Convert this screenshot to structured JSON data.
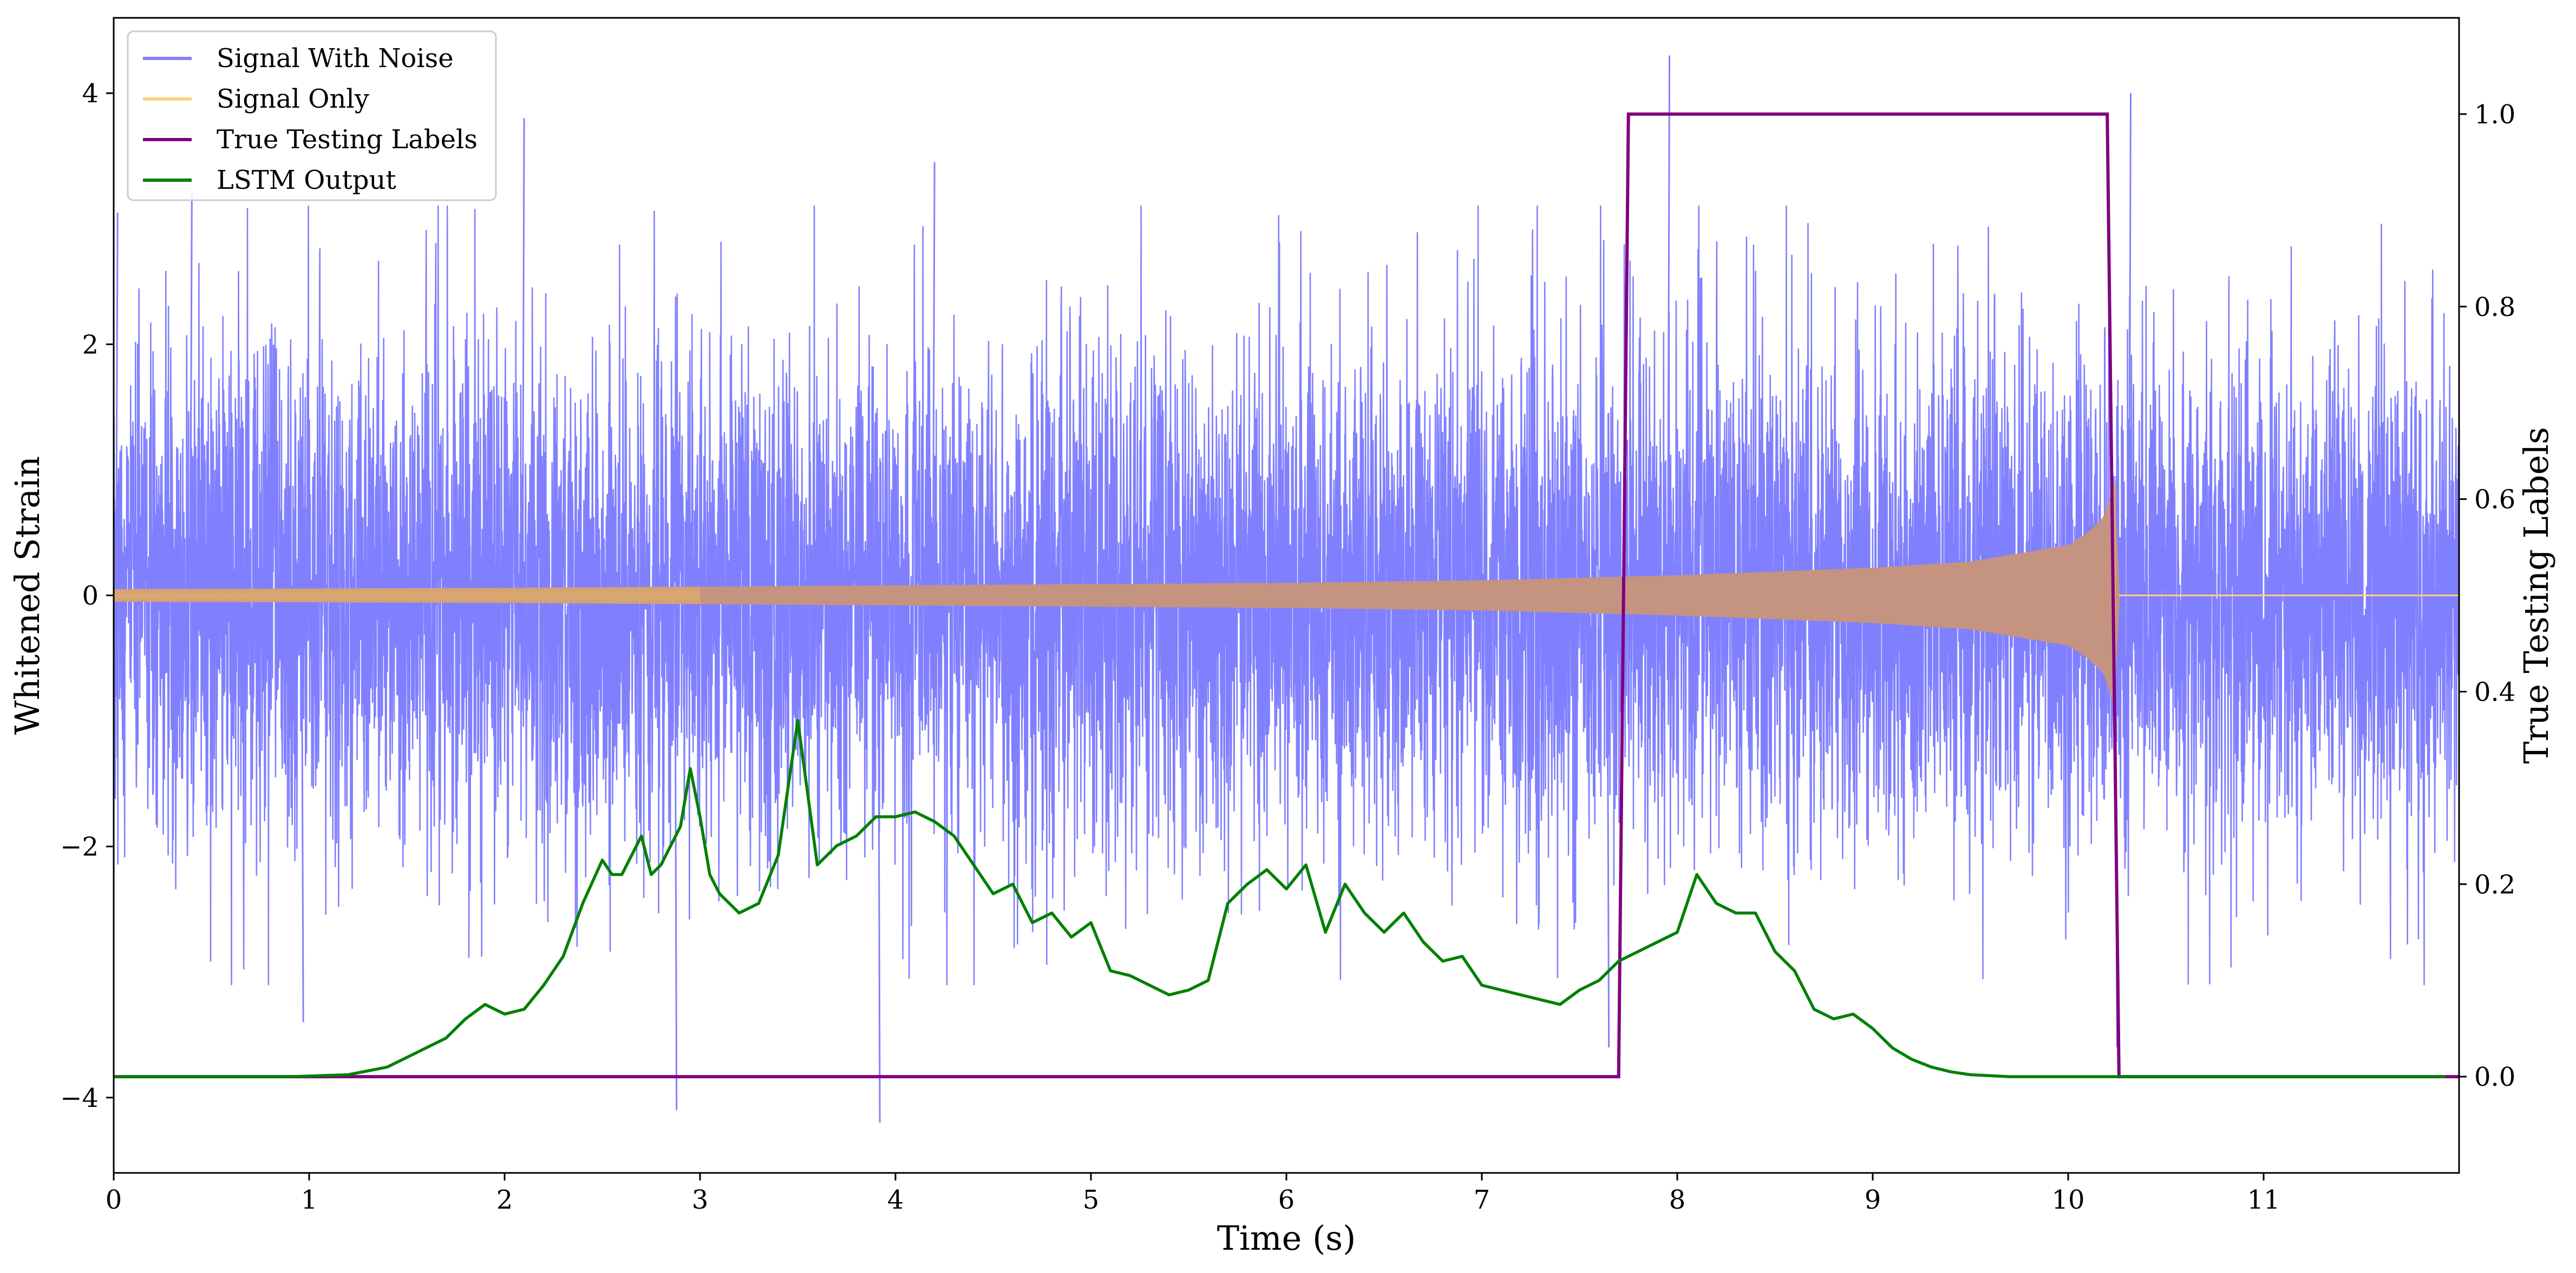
{
  "chart_data": {
    "type": "line",
    "title": "",
    "xlabel": "Time (s)",
    "ylabel": "Whitened Strain",
    "y2label": "True Testing Labels",
    "xlim": [
      0,
      12
    ],
    "ylim": [
      -4.6,
      4.6
    ],
    "y2lim": [
      -0.1,
      1.1
    ],
    "xticks": [
      "0",
      "1",
      "2",
      "3",
      "4",
      "5",
      "6",
      "7",
      "8",
      "9",
      "10",
      "11"
    ],
    "yticks": [
      "−4",
      "−2",
      "0",
      "2",
      "4"
    ],
    "y2ticks": [
      "0.0",
      "0.2",
      "0.4",
      "0.6",
      "0.8",
      "1.0"
    ],
    "grid": false,
    "legend_position": "top-left",
    "series": [
      {
        "name": "Signal With Noise",
        "axis": "left",
        "color": "#8080ff",
        "description_kind": "noise",
        "x_range": [
          0,
          12
        ],
        "typical_amplitude": 1.8,
        "peak_spikes": [
          {
            "x": 0.02,
            "y": 3.05
          },
          {
            "x": 0.4,
            "y": 3.2
          },
          {
            "x": 0.97,
            "y": -3.4
          },
          {
            "x": 2.1,
            "y": 3.8
          },
          {
            "x": 2.88,
            "y": -4.1
          },
          {
            "x": 3.92,
            "y": -4.2
          },
          {
            "x": 4.2,
            "y": 3.45
          },
          {
            "x": 7.65,
            "y": -3.6
          },
          {
            "x": 7.96,
            "y": 4.3
          },
          {
            "x": 10.25,
            "y": -3.6
          },
          {
            "x": 10.32,
            "y": 4.0
          }
        ]
      },
      {
        "name": "Signal Only",
        "axis": "left",
        "color": "#ffd27a",
        "description_kind": "chirp_envelope",
        "envelope": [
          [
            0,
            0.05
          ],
          [
            2,
            0.06
          ],
          [
            4,
            0.08
          ],
          [
            6,
            0.1
          ],
          [
            7,
            0.12
          ],
          [
            8,
            0.16
          ],
          [
            9,
            0.22
          ],
          [
            9.5,
            0.27
          ],
          [
            10,
            0.4
          ],
          [
            10.1,
            0.5
          ],
          [
            10.18,
            0.62
          ],
          [
            10.24,
            0.9
          ],
          [
            10.26,
            0.0
          ],
          [
            12,
            0.0
          ]
        ]
      },
      {
        "name": "True Testing Labels",
        "axis": "right",
        "color": "#800080",
        "x": [
          0,
          7.7,
          7.75,
          10.2,
          10.26,
          10.26
        ],
        "values": [
          0.0,
          0.0,
          1.0,
          1.0,
          0.0,
          0.0
        ]
      },
      {
        "name": "LSTM Output",
        "axis": "right",
        "color": "#008000",
        "x": [
          0,
          0.9,
          1.2,
          1.4,
          1.6,
          1.7,
          1.8,
          1.9,
          2.0,
          2.1,
          2.2,
          2.3,
          2.4,
          2.5,
          2.55,
          2.6,
          2.7,
          2.75,
          2.8,
          2.9,
          2.95,
          3.0,
          3.05,
          3.1,
          3.2,
          3.3,
          3.4,
          3.5,
          3.6,
          3.7,
          3.8,
          3.9,
          4.0,
          4.1,
          4.2,
          4.3,
          4.4,
          4.5,
          4.6,
          4.7,
          4.8,
          4.9,
          5.0,
          5.1,
          5.2,
          5.3,
          5.4,
          5.5,
          5.6,
          5.7,
          5.8,
          5.9,
          6.0,
          6.1,
          6.2,
          6.3,
          6.4,
          6.5,
          6.6,
          6.7,
          6.8,
          6.9,
          7.0,
          7.1,
          7.2,
          7.3,
          7.4,
          7.5,
          7.6,
          7.7,
          7.8,
          7.9,
          8.0,
          8.1,
          8.2,
          8.3,
          8.4,
          8.5,
          8.6,
          8.7,
          8.8,
          8.9,
          9.0,
          9.1,
          9.2,
          9.3,
          9.4,
          9.5,
          9.6,
          9.7,
          9.8,
          10.0,
          10.3,
          12
        ],
        "values": [
          0.0,
          0.0,
          0.002,
          0.01,
          0.03,
          0.04,
          0.06,
          0.075,
          0.065,
          0.07,
          0.095,
          0.125,
          0.18,
          0.225,
          0.21,
          0.21,
          0.25,
          0.21,
          0.22,
          0.26,
          0.32,
          0.27,
          0.21,
          0.19,
          0.17,
          0.18,
          0.23,
          0.37,
          0.22,
          0.24,
          0.25,
          0.27,
          0.27,
          0.275,
          0.265,
          0.25,
          0.22,
          0.19,
          0.2,
          0.16,
          0.17,
          0.145,
          0.16,
          0.11,
          0.105,
          0.095,
          0.085,
          0.09,
          0.1,
          0.18,
          0.2,
          0.215,
          0.195,
          0.22,
          0.15,
          0.2,
          0.17,
          0.15,
          0.17,
          0.14,
          0.12,
          0.125,
          0.095,
          0.09,
          0.085,
          0.08,
          0.075,
          0.09,
          0.1,
          0.12,
          0.13,
          0.14,
          0.15,
          0.21,
          0.18,
          0.17,
          0.17,
          0.13,
          0.11,
          0.07,
          0.06,
          0.065,
          0.05,
          0.03,
          0.018,
          0.01,
          0.005,
          0.002,
          0.001,
          0.0,
          0.0,
          0.0,
          0.0,
          0.0
        ]
      }
    ]
  }
}
